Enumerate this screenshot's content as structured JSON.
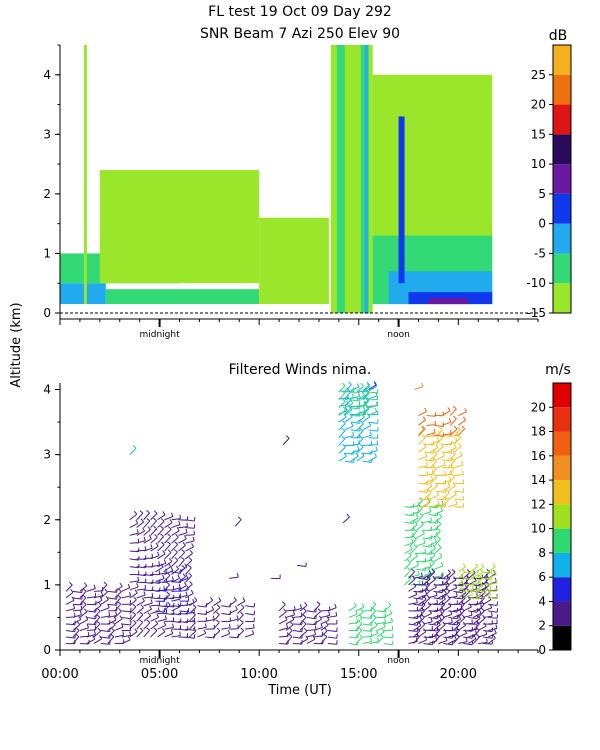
{
  "title_line1": "FL test  19 Oct 09 Day 292",
  "title_line2": "SNR Beam 7 Azi 250 Elev 90",
  "ylabel": "Altitude (km)",
  "chart_data": [
    {
      "type": "heatmap",
      "title": "SNR Beam 7 Azi 250 Elev 90",
      "ylabel": "Altitude (km)",
      "y_ticks": [
        "0",
        "1",
        "2",
        "3",
        "4"
      ],
      "ylim": [
        0,
        4.5
      ],
      "markers": [
        "midnight",
        "noon"
      ],
      "marker_x_hours": [
        5,
        17
      ],
      "colorbar": {
        "unit": "dB",
        "ticks": [
          "-15",
          "-10",
          "-5",
          "0",
          "5",
          "10",
          "15",
          "20",
          "25"
        ],
        "range": [
          -15,
          30
        ],
        "levels": [
          {
            "from": -15,
            "to": -10,
            "color": "#99e62b"
          },
          {
            "from": -10,
            "to": -5,
            "color": "#33d974"
          },
          {
            "from": -5,
            "to": 0,
            "color": "#22aaee"
          },
          {
            "from": 0,
            "to": 5,
            "color": "#1038ee"
          },
          {
            "from": 5,
            "to": 10,
            "color": "#6a1aa0"
          },
          {
            "from": 10,
            "to": 15,
            "color": "#2a0a5a"
          },
          {
            "from": 15,
            "to": 20,
            "color": "#dd1515"
          },
          {
            "from": 20,
            "to": 25,
            "color": "#f07010"
          },
          {
            "from": 25,
            "to": 30,
            "color": "#f5b020"
          }
        ]
      },
      "cells": [
        {
          "t0": 0,
          "t1": 2.3,
          "h0": 0.15,
          "h1": 0.5,
          "level": -5
        },
        {
          "t0": 0,
          "t1": 6,
          "h0": 0.5,
          "h1": 1.0,
          "level": -10
        },
        {
          "t0": 1.2,
          "t1": 1.35,
          "h0": 0.15,
          "h1": 4.5,
          "level": -15
        },
        {
          "t0": 2.3,
          "t1": 10,
          "h0": 0.15,
          "h1": 0.4,
          "level": -10
        },
        {
          "t0": 2,
          "t1": 10,
          "h0": 0.5,
          "h1": 2.4,
          "level": -15
        },
        {
          "t0": 10,
          "t1": 13.5,
          "h0": 0.15,
          "h1": 1.6,
          "level": -15
        },
        {
          "t0": 13.6,
          "t1": 15.7,
          "h0": 0.0,
          "h1": 4.5,
          "level": -15
        },
        {
          "t0": 13.9,
          "t1": 14.3,
          "h0": 0.0,
          "h1": 4.5,
          "level": -10
        },
        {
          "t0": 15.1,
          "t1": 15.5,
          "h0": 0.0,
          "h1": 4.5,
          "level": -10
        },
        {
          "t0": 15.3,
          "t1": 15.45,
          "h0": 0.0,
          "h1": 4.5,
          "level": -5
        },
        {
          "t0": 15.7,
          "t1": 21.7,
          "h0": 0.15,
          "h1": 4.0,
          "level": -15
        },
        {
          "t0": 15.7,
          "t1": 21.7,
          "h0": 0.15,
          "h1": 1.3,
          "level": -10
        },
        {
          "t0": 16.5,
          "t1": 21.7,
          "h0": 0.15,
          "h1": 0.7,
          "level": -5
        },
        {
          "t0": 17.5,
          "t1": 21.7,
          "h0": 0.15,
          "h1": 0.35,
          "level": 0
        },
        {
          "t0": 18.5,
          "t1": 20.5,
          "h0": 0.15,
          "h1": 0.25,
          "level": 5
        },
        {
          "t0": 17.0,
          "t1": 17.3,
          "h0": 0.5,
          "h1": 3.3,
          "level": 0
        }
      ]
    },
    {
      "type": "scatter",
      "title": "Filtered Winds nima.",
      "xlabel": "Time (UT)",
      "ylabel": "Altitude (km)",
      "x_ticks": [
        "00:00",
        "05:00",
        "10:00",
        "15:00",
        "20:00"
      ],
      "x_tick_hours": [
        0,
        5,
        10,
        15,
        20
      ],
      "xlim": [
        0,
        24
      ],
      "y_ticks": [
        "0",
        "1",
        "2",
        "3",
        "4"
      ],
      "ylim": [
        0,
        4.1
      ],
      "markers": [
        "midnight",
        "noon"
      ],
      "marker_x_hours": [
        5,
        17
      ],
      "colorbar": {
        "unit": "m/s",
        "ticks": [
          "0",
          "2",
          "4",
          "6",
          "8",
          "10",
          "12",
          "14",
          "16",
          "18",
          "20"
        ],
        "range": [
          0,
          22
        ],
        "levels": [
          {
            "from": 0,
            "to": 2,
            "color": "#000000"
          },
          {
            "from": 2,
            "to": 4,
            "color": "#4a1a8a"
          },
          {
            "from": 4,
            "to": 6,
            "color": "#2020e0"
          },
          {
            "from": 6,
            "to": 8,
            "color": "#10b0e8"
          },
          {
            "from": 8,
            "to": 10,
            "color": "#30d870"
          },
          {
            "from": 10,
            "to": 12,
            "color": "#a0e020"
          },
          {
            "from": 12,
            "to": 14,
            "color": "#f0c020"
          },
          {
            "from": 14,
            "to": 16,
            "color": "#f09020"
          },
          {
            "from": 16,
            "to": 18,
            "color": "#f06010"
          },
          {
            "from": 18,
            "to": 20,
            "color": "#e83010"
          },
          {
            "from": 20,
            "to": 22,
            "color": "#e00000"
          }
        ]
      },
      "wind_regions": [
        {
          "t0": 0.3,
          "t1": 3.3,
          "h0": 0.1,
          "h1": 0.9,
          "dt": 0.35,
          "dh": 0.1,
          "speed": 3
        },
        {
          "t0": 3.5,
          "t1": 6.5,
          "h0": 0.2,
          "h1": 2.1,
          "dt": 0.35,
          "dh": 0.12,
          "speed": 3
        },
        {
          "t0": 4.8,
          "t1": 6.0,
          "h0": 0.6,
          "h1": 1.2,
          "dt": 0.4,
          "dh": 0.15,
          "speed": 5
        },
        {
          "t0": 6.5,
          "t1": 9.5,
          "h0": 0.2,
          "h1": 0.7,
          "dt": 0.4,
          "dh": 0.12,
          "speed": 3
        },
        {
          "t0": 11.0,
          "t1": 13.5,
          "h0": 0.1,
          "h1": 0.6,
          "dt": 0.35,
          "dh": 0.1,
          "speed": 3
        },
        {
          "t0": 14.0,
          "t1": 15.6,
          "h0": 2.9,
          "h1": 4.0,
          "dt": 0.3,
          "dh": 0.12,
          "speed": 6
        },
        {
          "t0": 14.0,
          "t1": 15.6,
          "h0": 3.6,
          "h1": 4.0,
          "dt": 0.3,
          "dh": 0.12,
          "speed": 8
        },
        {
          "t0": 14.5,
          "t1": 16.5,
          "h0": 0.1,
          "h1": 0.6,
          "dt": 0.35,
          "dh": 0.1,
          "speed": 9
        },
        {
          "t0": 17.3,
          "t1": 19.0,
          "h0": 1.0,
          "h1": 2.3,
          "dt": 0.3,
          "dh": 0.12,
          "speed": 8
        },
        {
          "t0": 18.0,
          "t1": 20.0,
          "h0": 2.2,
          "h1": 3.3,
          "dt": 0.3,
          "dh": 0.12,
          "speed": 13
        },
        {
          "t0": 18.0,
          "t1": 20.0,
          "h0": 3.3,
          "h1": 3.6,
          "dt": 0.4,
          "dh": 0.15,
          "speed": 17
        },
        {
          "t0": 17.5,
          "t1": 21.5,
          "h0": 0.1,
          "h1": 1.1,
          "dt": 0.25,
          "dh": 0.1,
          "speed": 3
        },
        {
          "t0": 20.0,
          "t1": 21.5,
          "h0": 0.8,
          "h1": 1.2,
          "dt": 0.3,
          "dh": 0.1,
          "speed": 10
        }
      ],
      "wind_points": [
        {
          "t": 3.5,
          "h": 3.0,
          "speed": 7
        },
        {
          "t": 8.8,
          "h": 1.9,
          "speed": 3
        },
        {
          "t": 11.2,
          "h": 3.15,
          "speed": 3
        },
        {
          "t": 14.2,
          "h": 1.95,
          "speed": 3
        },
        {
          "t": 15.5,
          "h": 4.0,
          "speed": 4
        },
        {
          "t": 17.8,
          "h": 4.0,
          "speed": 14
        },
        {
          "t": 8.5,
          "h": 1.1,
          "speed": 2
        },
        {
          "t": 10.6,
          "h": 1.1,
          "speed": 3
        },
        {
          "t": 11.9,
          "h": 1.3,
          "speed": 3
        }
      ]
    }
  ]
}
